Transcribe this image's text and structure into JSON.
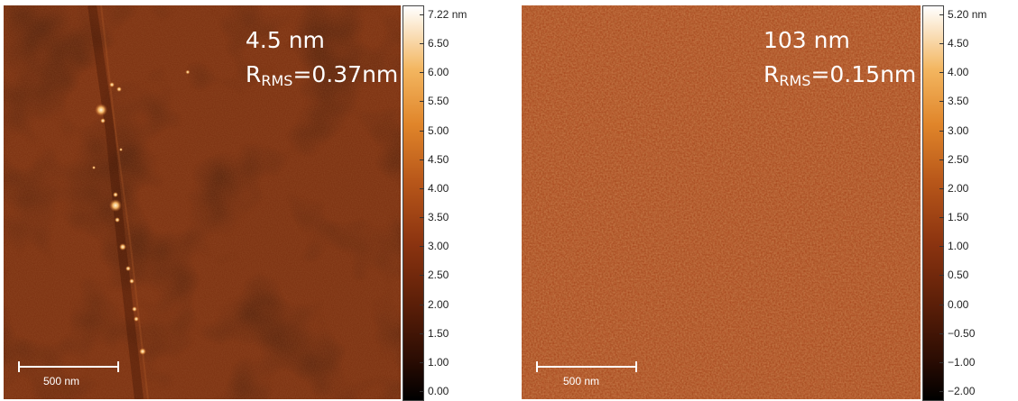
{
  "left_image": {
    "height_label": "4.5 nm",
    "rms_prefix": "R",
    "rms_sub": "RMS",
    "rms_value": "=0.37nm",
    "scale_bar_label": "500 nm",
    "colorbar_ticks": [
      "7.22 nm",
      "6.50",
      "6.00",
      "5.50",
      "5.00",
      "4.50",
      "4.00",
      "3.50",
      "3.00",
      "2.50",
      "2.00",
      "1.50",
      "1.00",
      "0.00"
    ]
  },
  "right_image": {
    "height_label": "103 nm",
    "rms_prefix": "R",
    "rms_sub": "RMS",
    "rms_value": "=0.15nm",
    "scale_bar_label": "500 nm",
    "colorbar_ticks": [
      "5.20 nm",
      "4.50",
      "4.00",
      "3.50",
      "3.00",
      "2.50",
      "2.00",
      "1.50",
      "1.00",
      "0.50",
      "0.00",
      "−0.50",
      "−1.00",
      "−2.00"
    ]
  },
  "colors": {
    "left_base": "#6e2a0c",
    "right_base": "#a8461c",
    "particle": "#fff4d0"
  }
}
